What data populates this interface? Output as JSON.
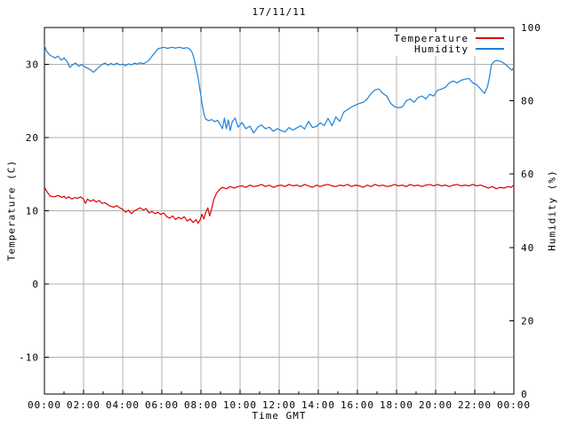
{
  "chart_data": {
    "type": "line",
    "title": "17/11/11",
    "xlabel": "Time GMT",
    "ylabel": "Temperature (C)",
    "y2label": "Humidity (%)",
    "grid": true,
    "legend_position": "top-right-inside",
    "background": "#ffffff",
    "grid_color": "#b0b0b0",
    "border_color": "#000000",
    "text_color": "#000000",
    "xlim": [
      0,
      24
    ],
    "ylim": [
      -15,
      35
    ],
    "y2lim": [
      0,
      100
    ],
    "x_tick_values": [
      0,
      2,
      4,
      6,
      8,
      10,
      12,
      14,
      16,
      18,
      20,
      22,
      24
    ],
    "x_tick_labels": [
      "00:00",
      "02:00",
      "04:00",
      "06:00",
      "08:00",
      "10:00",
      "12:00",
      "14:00",
      "16:00",
      "18:00",
      "20:00",
      "22:00",
      "00:00"
    ],
    "x_minor_tick_values": [
      1,
      3,
      5,
      7,
      9,
      11,
      13,
      15,
      17,
      19,
      21,
      23
    ],
    "y_tick_values": [
      30,
      20,
      10,
      0,
      -10
    ],
    "y_tick_labels": [
      "30",
      "20",
      "10",
      "0",
      "-10"
    ],
    "y2_tick_values": [
      100,
      80,
      60,
      40,
      20,
      0
    ],
    "y2_tick_labels": [
      "100",
      "80",
      "60",
      "40",
      "20",
      "0"
    ],
    "series": [
      {
        "name": "Temperature",
        "axis": "y1",
        "color": "#dd0000",
        "x": [
          0,
          0.15,
          0.3,
          0.5,
          0.7,
          0.9,
          1.0,
          1.1,
          1.25,
          1.4,
          1.55,
          1.7,
          1.85,
          2.0,
          2.1,
          2.2,
          2.35,
          2.5,
          2.65,
          2.8,
          2.95,
          3.1,
          3.25,
          3.4,
          3.55,
          3.7,
          3.85,
          4.0,
          4.15,
          4.3,
          4.45,
          4.6,
          4.75,
          4.9,
          5.05,
          5.2,
          5.35,
          5.5,
          5.65,
          5.8,
          5.95,
          6.1,
          6.25,
          6.4,
          6.55,
          6.7,
          6.85,
          7.0,
          7.15,
          7.3,
          7.45,
          7.6,
          7.75,
          7.85,
          7.95,
          8.05,
          8.15,
          8.25,
          8.35,
          8.45,
          8.55,
          8.65,
          8.8,
          8.95,
          9.1,
          9.3,
          9.5,
          9.7,
          9.9,
          10.1,
          10.3,
          10.5,
          10.7,
          10.9,
          11.1,
          11.3,
          11.5,
          11.7,
          11.9,
          12.1,
          12.3,
          12.5,
          12.7,
          12.9,
          13.1,
          13.3,
          13.5,
          13.7,
          13.9,
          14.1,
          14.3,
          14.5,
          14.7,
          14.9,
          15.1,
          15.3,
          15.5,
          15.7,
          15.9,
          16.1,
          16.3,
          16.5,
          16.7,
          16.9,
          17.1,
          17.3,
          17.5,
          17.7,
          17.9,
          18.1,
          18.3,
          18.5,
          18.7,
          18.9,
          19.1,
          19.3,
          19.5,
          19.7,
          19.9,
          20.1,
          20.3,
          20.5,
          20.7,
          20.9,
          21.1,
          21.3,
          21.5,
          21.7,
          21.9,
          22.1,
          22.3,
          22.5,
          22.7,
          22.9,
          23.1,
          23.3,
          23.5,
          23.7,
          23.85,
          24.0
        ],
        "values": [
          13.2,
          12.5,
          12.0,
          11.9,
          12.1,
          11.8,
          12.0,
          11.7,
          11.9,
          11.6,
          11.8,
          11.7,
          11.9,
          11.6,
          11.0,
          11.6,
          11.3,
          11.5,
          11.2,
          11.4,
          11.0,
          11.1,
          10.8,
          10.6,
          10.5,
          10.7,
          10.4,
          10.2,
          9.8,
          10.1,
          9.6,
          10.0,
          10.2,
          10.4,
          10.1,
          10.3,
          9.7,
          9.9,
          9.6,
          9.8,
          9.5,
          9.7,
          9.2,
          9.0,
          9.3,
          8.8,
          9.1,
          8.9,
          9.2,
          8.6,
          8.9,
          8.4,
          8.8,
          8.3,
          8.7,
          9.5,
          8.9,
          9.8,
          10.4,
          9.3,
          10.3,
          11.5,
          12.4,
          12.9,
          13.2,
          13.0,
          13.3,
          13.1,
          13.3,
          13.4,
          13.2,
          13.5,
          13.3,
          13.4,
          13.6,
          13.3,
          13.5,
          13.2,
          13.4,
          13.5,
          13.3,
          13.6,
          13.4,
          13.5,
          13.3,
          13.6,
          13.4,
          13.2,
          13.5,
          13.3,
          13.5,
          13.6,
          13.4,
          13.3,
          13.5,
          13.4,
          13.6,
          13.3,
          13.5,
          13.4,
          13.2,
          13.5,
          13.3,
          13.6,
          13.4,
          13.5,
          13.3,
          13.4,
          13.6,
          13.4,
          13.5,
          13.3,
          13.6,
          13.4,
          13.5,
          13.3,
          13.5,
          13.6,
          13.4,
          13.6,
          13.4,
          13.5,
          13.3,
          13.5,
          13.6,
          13.4,
          13.5,
          13.4,
          13.6,
          13.4,
          13.5,
          13.3,
          13.1,
          13.3,
          13.0,
          13.2,
          13.1,
          13.3,
          13.2,
          13.5
        ]
      },
      {
        "name": "Humidity",
        "axis": "y2",
        "color": "#1e82d8",
        "x": [
          0,
          0.1,
          0.25,
          0.4,
          0.55,
          0.7,
          0.85,
          1.0,
          1.15,
          1.3,
          1.45,
          1.6,
          1.75,
          1.9,
          2.05,
          2.2,
          2.35,
          2.5,
          2.65,
          2.8,
          2.95,
          3.1,
          3.25,
          3.4,
          3.55,
          3.7,
          3.85,
          4.0,
          4.15,
          4.3,
          4.45,
          4.6,
          4.75,
          4.9,
          5.05,
          5.2,
          5.35,
          5.5,
          5.65,
          5.8,
          5.95,
          6.1,
          6.3,
          6.5,
          6.7,
          6.9,
          7.1,
          7.3,
          7.45,
          7.55,
          7.65,
          7.75,
          7.85,
          7.95,
          8.05,
          8.15,
          8.25,
          8.4,
          8.55,
          8.7,
          8.85,
          9.0,
          9.1,
          9.2,
          9.3,
          9.4,
          9.5,
          9.6,
          9.75,
          9.9,
          10.1,
          10.3,
          10.5,
          10.7,
          10.9,
          11.1,
          11.3,
          11.5,
          11.7,
          11.9,
          12.1,
          12.3,
          12.5,
          12.7,
          12.9,
          13.1,
          13.3,
          13.5,
          13.7,
          13.9,
          14.1,
          14.3,
          14.5,
          14.7,
          14.9,
          15.1,
          15.3,
          15.5,
          15.7,
          15.9,
          16.1,
          16.3,
          16.5,
          16.7,
          16.9,
          17.1,
          17.3,
          17.5,
          17.7,
          17.9,
          18.1,
          18.3,
          18.5,
          18.7,
          18.9,
          19.1,
          19.3,
          19.5,
          19.7,
          19.9,
          20.1,
          20.3,
          20.5,
          20.7,
          20.9,
          21.1,
          21.3,
          21.5,
          21.7,
          21.9,
          22.1,
          22.3,
          22.5,
          22.65,
          22.75,
          22.85,
          23.0,
          23.15,
          23.3,
          23.45,
          23.6,
          23.75,
          23.9,
          24.0
        ],
        "values": [
          95.1,
          93.6,
          92.6,
          92.1,
          91.7,
          92.2,
          91.1,
          91.7,
          90.8,
          89.1,
          89.9,
          90.3,
          89.4,
          89.9,
          89.3,
          88.9,
          88.5,
          87.8,
          88.5,
          89.3,
          89.9,
          90.3,
          89.7,
          90.2,
          89.8,
          90.3,
          89.8,
          90.0,
          89.6,
          90.1,
          89.8,
          90.3,
          90.0,
          90.4,
          90.1,
          90.5,
          91.1,
          92.2,
          93.1,
          94.2,
          94.4,
          94.6,
          94.3,
          94.6,
          94.4,
          94.6,
          94.3,
          94.5,
          94.0,
          93.2,
          91.5,
          89.0,
          86.5,
          83.0,
          79.5,
          76.5,
          75.0,
          74.6,
          74.9,
          74.3,
          74.7,
          73.4,
          72.4,
          75.3,
          72.4,
          74.8,
          71.9,
          74.3,
          75.3,
          72.8,
          74.1,
          72.4,
          73.1,
          71.2,
          72.8,
          73.4,
          72.4,
          72.8,
          71.7,
          72.4,
          71.9,
          71.5,
          72.7,
          72.0,
          72.6,
          73.2,
          72.3,
          74.4,
          72.7,
          73.0,
          74.0,
          73.2,
          75.2,
          73.2,
          75.6,
          74.4,
          76.9,
          77.6,
          78.3,
          78.8,
          79.3,
          79.6,
          80.5,
          82.0,
          83.0,
          83.2,
          82.0,
          81.3,
          79.3,
          78.4,
          78.1,
          78.3,
          80.0,
          80.5,
          79.6,
          80.9,
          81.3,
          80.5,
          81.8,
          81.3,
          82.9,
          83.2,
          83.7,
          84.9,
          85.4,
          84.9,
          85.6,
          85.9,
          86.1,
          84.9,
          84.4,
          83.2,
          82.0,
          83.8,
          86.4,
          89.8,
          90.8,
          91.0,
          90.8,
          90.4,
          89.8,
          89.0,
          88.4,
          89.1
        ]
      }
    ]
  }
}
